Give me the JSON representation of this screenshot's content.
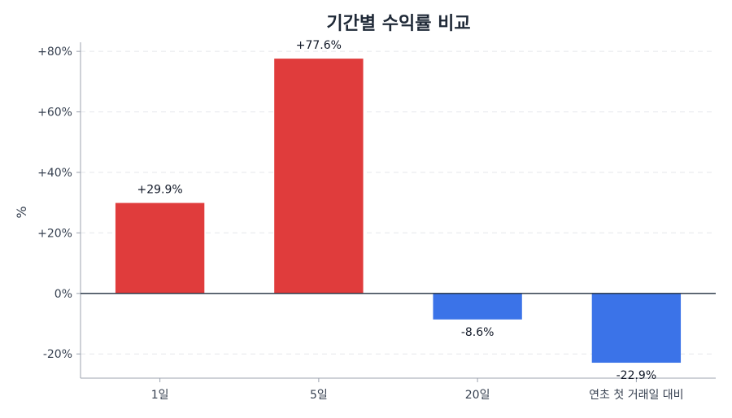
{
  "chart_data": {
    "type": "bar",
    "title": "기간별 수익률 비교",
    "ylabel": "%",
    "xlabel": "",
    "categories": [
      "1일",
      "5일",
      "20일",
      "연초 첫 거래일 대비"
    ],
    "values": [
      29.9,
      77.6,
      -8.6,
      -22.9
    ],
    "value_labels": [
      "+29.9%",
      "+77.6%",
      "-8.6%",
      "-22.9%"
    ],
    "ylim": [
      -28,
      83
    ],
    "yticks": [
      -20,
      0,
      20,
      40,
      60,
      80
    ],
    "ytick_labels": [
      "-20%",
      "0%",
      "+20%",
      "+40%",
      "+60%",
      "+80%"
    ],
    "grid": true,
    "colors": {
      "positive": "#e03c3c",
      "negative": "#3b73e8"
    }
  }
}
